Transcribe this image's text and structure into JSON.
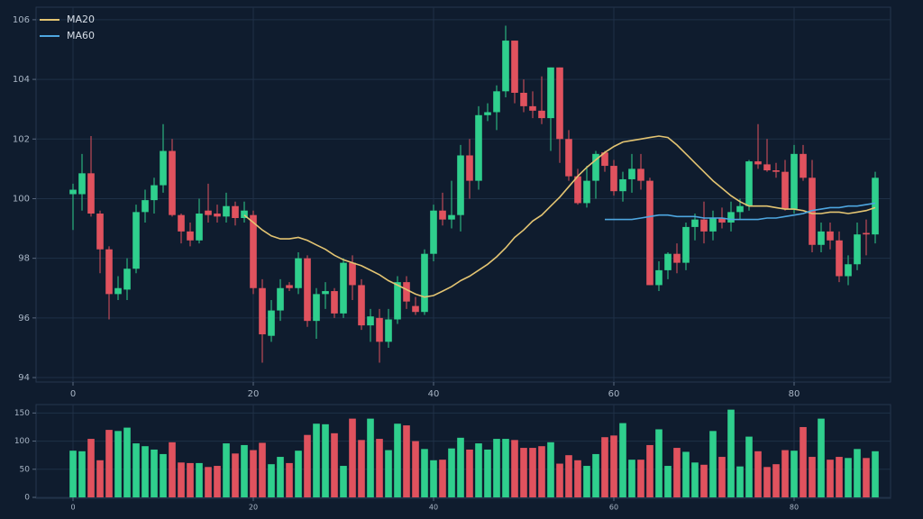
{
  "chart_data": [
    {
      "type": "candlestick",
      "x": [
        0,
        1,
        2,
        3,
        4,
        5,
        6,
        7,
        8,
        9,
        10,
        11,
        12,
        13,
        14,
        15,
        16,
        17,
        18,
        19,
        20,
        21,
        22,
        23,
        24,
        25,
        26,
        27,
        28,
        29,
        30,
        31,
        32,
        33,
        34,
        35,
        36,
        37,
        38,
        39,
        40,
        41,
        42,
        43,
        44,
        45,
        46,
        47,
        48,
        49,
        50,
        51,
        52,
        53,
        54,
        55,
        56,
        57,
        58,
        59,
        60,
        61,
        62,
        63,
        64,
        65,
        66,
        67,
        68,
        69,
        70,
        71,
        72,
        73,
        74,
        75,
        76,
        77,
        78,
        79,
        80,
        81,
        82,
        83,
        84,
        85,
        86,
        87,
        88,
        89
      ],
      "candles": [
        {
          "o": 100.15,
          "h": 100.5,
          "l": 98.95,
          "c": 100.3
        },
        {
          "o": 100.15,
          "h": 101.5,
          "l": 99.6,
          "c": 100.85
        },
        {
          "o": 100.85,
          "h": 102.1,
          "l": 99.4,
          "c": 99.5
        },
        {
          "o": 99.5,
          "h": 99.6,
          "l": 97.5,
          "c": 98.3
        },
        {
          "o": 98.3,
          "h": 98.4,
          "l": 95.95,
          "c": 96.8
        },
        {
          "o": 96.8,
          "h": 97.4,
          "l": 96.6,
          "c": 97.0
        },
        {
          "o": 96.95,
          "h": 98.0,
          "l": 96.6,
          "c": 97.65
        },
        {
          "o": 97.65,
          "h": 99.8,
          "l": 97.5,
          "c": 99.55
        },
        {
          "o": 99.55,
          "h": 100.3,
          "l": 99.2,
          "c": 99.95
        },
        {
          "o": 99.95,
          "h": 100.7,
          "l": 99.5,
          "c": 100.45
        },
        {
          "o": 100.45,
          "h": 102.5,
          "l": 100.2,
          "c": 101.6
        },
        {
          "o": 101.6,
          "h": 102.0,
          "l": 99.4,
          "c": 99.45
        },
        {
          "o": 99.45,
          "h": 99.5,
          "l": 98.5,
          "c": 98.9
        },
        {
          "o": 98.9,
          "h": 99.2,
          "l": 98.4,
          "c": 98.6
        },
        {
          "o": 98.6,
          "h": 100.0,
          "l": 98.5,
          "c": 99.5
        },
        {
          "o": 99.6,
          "h": 100.5,
          "l": 99.2,
          "c": 99.45
        },
        {
          "o": 99.5,
          "h": 99.8,
          "l": 99.2,
          "c": 99.4
        },
        {
          "o": 99.4,
          "h": 100.2,
          "l": 99.2,
          "c": 99.75
        },
        {
          "o": 99.75,
          "h": 99.9,
          "l": 99.1,
          "c": 99.35
        },
        {
          "o": 99.35,
          "h": 99.9,
          "l": 99.2,
          "c": 99.6
        },
        {
          "o": 99.45,
          "h": 99.6,
          "l": 96.8,
          "c": 97.0
        },
        {
          "o": 97.0,
          "h": 97.3,
          "l": 94.5,
          "c": 95.45
        },
        {
          "o": 95.4,
          "h": 96.6,
          "l": 95.2,
          "c": 96.25
        },
        {
          "o": 96.25,
          "h": 97.3,
          "l": 95.9,
          "c": 97.0
        },
        {
          "o": 97.1,
          "h": 97.2,
          "l": 96.9,
          "c": 97.0
        },
        {
          "o": 97.0,
          "h": 98.2,
          "l": 96.8,
          "c": 98.0
        },
        {
          "o": 98.0,
          "h": 98.1,
          "l": 95.7,
          "c": 95.9
        },
        {
          "o": 95.9,
          "h": 97.0,
          "l": 95.3,
          "c": 96.8
        },
        {
          "o": 96.8,
          "h": 97.2,
          "l": 96.3,
          "c": 96.9
        },
        {
          "o": 96.9,
          "h": 97.0,
          "l": 96.0,
          "c": 96.15
        },
        {
          "o": 96.15,
          "h": 98.0,
          "l": 96.0,
          "c": 97.85
        },
        {
          "o": 97.85,
          "h": 98.1,
          "l": 96.6,
          "c": 97.1
        },
        {
          "o": 97.1,
          "h": 97.3,
          "l": 95.6,
          "c": 95.75
        },
        {
          "o": 95.75,
          "h": 96.3,
          "l": 95.2,
          "c": 96.05
        },
        {
          "o": 96.0,
          "h": 96.3,
          "l": 94.5,
          "c": 95.2
        },
        {
          "o": 95.2,
          "h": 96.3,
          "l": 95.0,
          "c": 95.95
        },
        {
          "o": 95.95,
          "h": 97.4,
          "l": 95.8,
          "c": 97.2
        },
        {
          "o": 97.2,
          "h": 97.4,
          "l": 96.3,
          "c": 96.55
        },
        {
          "o": 96.4,
          "h": 96.7,
          "l": 96.1,
          "c": 96.2
        },
        {
          "o": 96.2,
          "h": 98.3,
          "l": 96.1,
          "c": 98.15
        },
        {
          "o": 98.15,
          "h": 99.8,
          "l": 97.9,
          "c": 99.6
        },
        {
          "o": 99.6,
          "h": 100.2,
          "l": 99.1,
          "c": 99.3
        },
        {
          "o": 99.3,
          "h": 100.6,
          "l": 99.0,
          "c": 99.45
        },
        {
          "o": 99.45,
          "h": 101.8,
          "l": 98.9,
          "c": 101.45
        },
        {
          "o": 101.45,
          "h": 102.0,
          "l": 100.0,
          "c": 100.6
        },
        {
          "o": 100.6,
          "h": 103.1,
          "l": 100.3,
          "c": 102.8
        },
        {
          "o": 102.8,
          "h": 103.2,
          "l": 102.6,
          "c": 102.9
        },
        {
          "o": 102.9,
          "h": 103.8,
          "l": 102.3,
          "c": 103.6
        },
        {
          "o": 103.6,
          "h": 105.8,
          "l": 103.4,
          "c": 105.3
        },
        {
          "o": 105.3,
          "h": 105.3,
          "l": 103.2,
          "c": 103.55
        },
        {
          "o": 103.55,
          "h": 104.0,
          "l": 102.9,
          "c": 103.1
        },
        {
          "o": 103.1,
          "h": 103.6,
          "l": 102.7,
          "c": 102.95
        },
        {
          "o": 102.95,
          "h": 104.1,
          "l": 102.5,
          "c": 102.7
        },
        {
          "o": 102.7,
          "h": 104.4,
          "l": 101.6,
          "c": 104.4
        },
        {
          "o": 104.4,
          "h": 104.4,
          "l": 101.2,
          "c": 102.0
        },
        {
          "o": 102.0,
          "h": 102.3,
          "l": 100.6,
          "c": 100.75
        },
        {
          "o": 100.75,
          "h": 101.0,
          "l": 99.8,
          "c": 99.85
        },
        {
          "o": 99.85,
          "h": 101.1,
          "l": 99.7,
          "c": 100.6
        },
        {
          "o": 100.6,
          "h": 101.6,
          "l": 100.0,
          "c": 101.5
        },
        {
          "o": 101.55,
          "h": 101.6,
          "l": 100.9,
          "c": 101.1
        },
        {
          "o": 101.1,
          "h": 101.3,
          "l": 100.1,
          "c": 100.25
        },
        {
          "o": 100.25,
          "h": 100.9,
          "l": 99.9,
          "c": 100.65
        },
        {
          "o": 100.65,
          "h": 101.5,
          "l": 100.2,
          "c": 101.0
        },
        {
          "o": 101.0,
          "h": 101.5,
          "l": 100.3,
          "c": 100.6
        },
        {
          "o": 100.6,
          "h": 100.7,
          "l": 97.1,
          "c": 97.1
        },
        {
          "o": 97.1,
          "h": 97.9,
          "l": 96.9,
          "c": 97.6
        },
        {
          "o": 97.6,
          "h": 98.2,
          "l": 97.3,
          "c": 98.15
        },
        {
          "o": 98.15,
          "h": 98.5,
          "l": 97.5,
          "c": 97.85
        },
        {
          "o": 97.85,
          "h": 99.2,
          "l": 97.6,
          "c": 99.05
        },
        {
          "o": 99.05,
          "h": 99.5,
          "l": 98.6,
          "c": 99.3
        },
        {
          "o": 99.3,
          "h": 99.9,
          "l": 98.5,
          "c": 98.9
        },
        {
          "o": 98.9,
          "h": 99.6,
          "l": 98.6,
          "c": 99.35
        },
        {
          "o": 99.35,
          "h": 99.7,
          "l": 99.0,
          "c": 99.2
        },
        {
          "o": 99.2,
          "h": 99.9,
          "l": 98.9,
          "c": 99.55
        },
        {
          "o": 99.55,
          "h": 100.0,
          "l": 99.3,
          "c": 99.75
        },
        {
          "o": 99.75,
          "h": 101.3,
          "l": 99.6,
          "c": 101.25
        },
        {
          "o": 101.25,
          "h": 102.5,
          "l": 101.0,
          "c": 101.15
        },
        {
          "o": 101.15,
          "h": 102.0,
          "l": 100.9,
          "c": 100.95
        },
        {
          "o": 100.95,
          "h": 101.2,
          "l": 100.7,
          "c": 100.9
        },
        {
          "o": 100.9,
          "h": 101.3,
          "l": 99.6,
          "c": 99.65
        },
        {
          "o": 99.65,
          "h": 101.8,
          "l": 99.5,
          "c": 101.5
        },
        {
          "o": 101.5,
          "h": 101.8,
          "l": 100.6,
          "c": 100.7
        },
        {
          "o": 100.7,
          "h": 101.3,
          "l": 98.2,
          "c": 98.45
        },
        {
          "o": 98.45,
          "h": 99.2,
          "l": 98.2,
          "c": 98.9
        },
        {
          "o": 98.9,
          "h": 99.2,
          "l": 98.3,
          "c": 98.6
        },
        {
          "o": 98.6,
          "h": 98.9,
          "l": 97.2,
          "c": 97.4
        },
        {
          "o": 97.4,
          "h": 98.1,
          "l": 97.1,
          "c": 97.8
        },
        {
          "o": 97.8,
          "h": 99.2,
          "l": 97.6,
          "c": 98.8
        },
        {
          "o": 98.85,
          "h": 99.3,
          "l": 98.1,
          "c": 98.8
        },
        {
          "o": 98.8,
          "h": 100.9,
          "l": 98.5,
          "c": 100.7
        }
      ],
      "up_color": "#2fcf8d",
      "down_color": "#e0525e",
      "series": [
        {
          "name": "MA20",
          "color": "#e3c472",
          "values": [
            null,
            null,
            null,
            null,
            null,
            null,
            null,
            null,
            null,
            null,
            null,
            null,
            null,
            null,
            null,
            null,
            null,
            null,
            null,
            99.45,
            99.2,
            98.95,
            98.75,
            98.65,
            98.65,
            98.7,
            98.6,
            98.45,
            98.3,
            98.1,
            97.95,
            97.85,
            97.75,
            97.6,
            97.45,
            97.25,
            97.1,
            96.95,
            96.8,
            96.7,
            96.75,
            96.9,
            97.05,
            97.25,
            97.4,
            97.6,
            97.8,
            98.05,
            98.35,
            98.7,
            98.95,
            99.25,
            99.45,
            99.75,
            100.05,
            100.4,
            100.75,
            101.05,
            101.3,
            101.55,
            101.75,
            101.9,
            101.95,
            102.0,
            102.05,
            102.1,
            102.05,
            101.8,
            101.5,
            101.2,
            100.9,
            100.6,
            100.35,
            100.1,
            99.9,
            99.75,
            99.75,
            99.75,
            99.7,
            99.65,
            99.65,
            99.6,
            99.5,
            99.5,
            99.55,
            99.55,
            99.5,
            99.55,
            99.6,
            99.7
          ]
        },
        {
          "name": "MA60",
          "color": "#4ea6e0",
          "values": [
            null,
            null,
            null,
            null,
            null,
            null,
            null,
            null,
            null,
            null,
            null,
            null,
            null,
            null,
            null,
            null,
            null,
            null,
            null,
            null,
            null,
            null,
            null,
            null,
            null,
            null,
            null,
            null,
            null,
            null,
            null,
            null,
            null,
            null,
            null,
            null,
            null,
            null,
            null,
            null,
            null,
            null,
            null,
            null,
            null,
            null,
            null,
            null,
            null,
            null,
            null,
            null,
            null,
            null,
            null,
            null,
            null,
            null,
            null,
            99.3,
            99.3,
            99.3,
            99.3,
            99.35,
            99.4,
            99.45,
            99.45,
            99.4,
            99.4,
            99.4,
            99.35,
            99.35,
            99.35,
            99.3,
            99.3,
            99.3,
            99.3,
            99.35,
            99.35,
            99.4,
            99.45,
            99.5,
            99.6,
            99.65,
            99.7,
            99.7,
            99.75,
            99.75,
            99.8,
            99.85
          ]
        }
      ],
      "xlim": [
        -4.1,
        90.7
      ],
      "xticks": [
        0,
        20,
        40,
        60,
        80
      ],
      "ylim": [
        93.85,
        106.42
      ],
      "yticks": [
        94,
        96,
        98,
        100,
        102,
        104,
        106
      ],
      "grid": true,
      "legend": "upper left"
    },
    {
      "type": "volume",
      "x": [
        0,
        1,
        2,
        3,
        4,
        5,
        6,
        7,
        8,
        9,
        10,
        11,
        12,
        13,
        14,
        15,
        16,
        17,
        18,
        19,
        20,
        21,
        22,
        23,
        24,
        25,
        26,
        27,
        28,
        29,
        30,
        31,
        32,
        33,
        34,
        35,
        36,
        37,
        38,
        39,
        40,
        41,
        42,
        43,
        44,
        45,
        46,
        47,
        48,
        49,
        50,
        51,
        52,
        53,
        54,
        55,
        56,
        57,
        58,
        59,
        60,
        61,
        62,
        63,
        64,
        65,
        66,
        67,
        68,
        69,
        70,
        71,
        72,
        73,
        74,
        75,
        76,
        77,
        78,
        79,
        80,
        81,
        82,
        83,
        84,
        85,
        86,
        87,
        88,
        89
      ],
      "values": [
        83,
        82,
        104,
        66,
        120,
        118,
        124,
        96,
        91,
        85,
        77,
        98,
        62,
        61,
        61,
        54,
        56,
        96,
        78,
        93,
        84,
        97,
        59,
        72,
        61,
        83,
        111,
        131,
        130,
        114,
        56,
        140,
        102,
        140,
        104,
        84,
        131,
        128,
        100,
        86,
        66,
        67,
        87,
        106,
        85,
        96,
        85,
        104,
        104,
        102,
        88,
        88,
        91,
        98,
        60,
        75,
        66,
        56,
        77,
        107,
        110,
        132,
        67,
        67,
        93,
        121,
        56,
        88,
        81,
        62,
        58,
        118,
        72,
        156,
        55,
        108,
        82,
        54,
        59,
        84,
        83,
        125,
        72,
        140,
        67,
        72,
        70,
        86,
        70,
        82
      ],
      "xlim": [
        -4.1,
        90.7
      ],
      "xticks": [
        0,
        20,
        40,
        60,
        80
      ],
      "ylim": [
        0,
        165
      ],
      "yticks": [
        0,
        50,
        100,
        150
      ],
      "grid": true
    }
  ]
}
